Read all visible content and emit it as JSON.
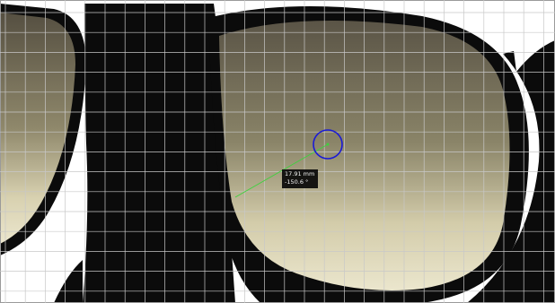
{
  "viewer": {
    "measurement": {
      "length": "17.91 mm",
      "angle": "-150.6 °"
    },
    "overlay_colors": {
      "grid": "#c8c8c8",
      "measure_line": "#3fd13f",
      "target_circle": "#1a1ad6"
    },
    "scene_colors": {
      "frame": "#0b0b0b",
      "lens_top": "#5e5849",
      "lens_bottom": "#e0dbbf",
      "background": "#ffffff"
    }
  }
}
